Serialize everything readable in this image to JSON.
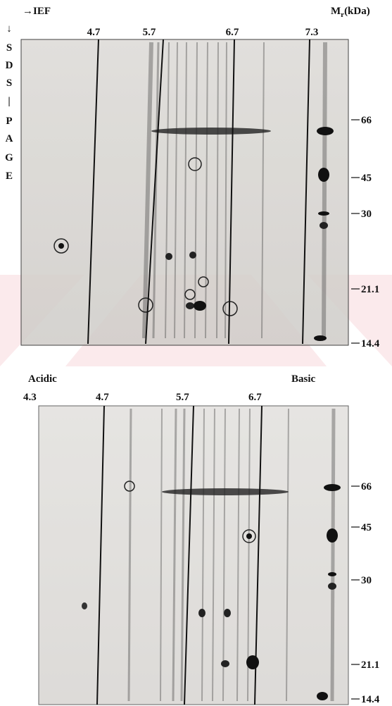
{
  "top_panel": {
    "ief_label": "→IEF",
    "mr_label": {
      "main": "M",
      "sub": "r",
      "unit": "(kDa)"
    },
    "sds_page_letters": [
      "↓",
      "S",
      "D",
      "S",
      "|",
      "P",
      "A",
      "G",
      "E"
    ],
    "pi_markers": [
      "4.7",
      "5.7",
      "6.7",
      "7.3"
    ],
    "mw_markers": [
      "66",
      "45",
      "30",
      "21.1",
      "14.4"
    ]
  },
  "bottom_panel": {
    "acidic_label": "Acidic",
    "basic_label": "Basic",
    "pi_markers": [
      "4.3",
      "4.7",
      "5.7",
      "6.7"
    ],
    "mw_markers": [
      "66",
      "45",
      "30",
      "21.1",
      "14.4"
    ]
  }
}
